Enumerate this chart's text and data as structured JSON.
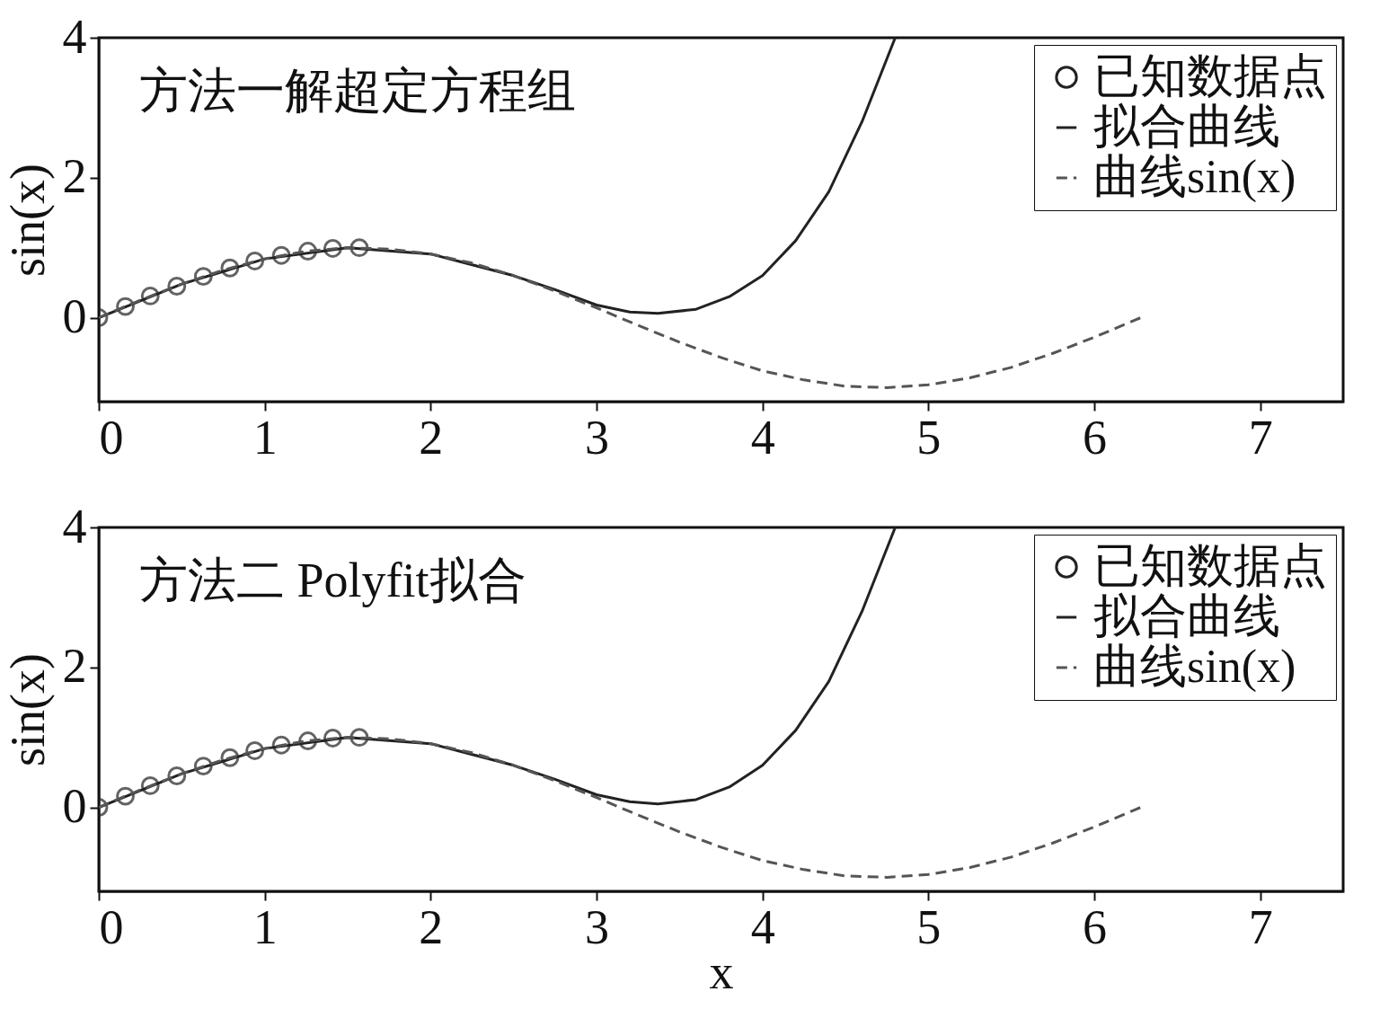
{
  "chart_data": [
    {
      "type": "line",
      "title": "方法一解超定方程组",
      "ylabel": "sin(x)",
      "xlim": [
        0,
        7.5
      ],
      "ylim": [
        -1.2,
        4
      ],
      "xticks": [
        0,
        1,
        2,
        3,
        4,
        5,
        6,
        7
      ],
      "yticks": [
        0,
        2,
        4
      ],
      "grid": false,
      "legend": "top right",
      "series": [
        {
          "name": "已知数据点",
          "type": "scatter",
          "marker": "circle",
          "color": "#222222",
          "x": [
            0,
            0.16,
            0.31,
            0.47,
            0.63,
            0.79,
            0.94,
            1.1,
            1.26,
            1.41,
            1.57
          ],
          "values": [
            0,
            0.16,
            0.31,
            0.45,
            0.59,
            0.71,
            0.81,
            0.89,
            0.95,
            0.99,
            1.0
          ]
        },
        {
          "name": "拟合曲线",
          "color": "#222222",
          "line_style": "solid",
          "x": [
            0,
            0.5,
            1,
            1.5,
            2,
            2.5,
            2.75,
            3,
            3.2,
            3.37,
            3.6,
            3.8,
            4,
            4.2,
            4.4,
            4.6,
            4.7,
            4.8
          ],
          "values": [
            0,
            0.48,
            0.84,
            1.0,
            0.91,
            0.6,
            0.4,
            0.18,
            0.08,
            0.06,
            0.12,
            0.3,
            0.6,
            1.1,
            1.8,
            2.8,
            3.4,
            4.0
          ]
        },
        {
          "name": "曲线sin(x)",
          "color": "#555555",
          "line_style": "dashed",
          "x": [
            0,
            0.25,
            0.5,
            0.75,
            1,
            1.25,
            1.5,
            1.75,
            2,
            2.25,
            2.5,
            2.75,
            3,
            3.25,
            3.5,
            3.75,
            4,
            4.25,
            4.5,
            4.75,
            5,
            5.25,
            5.5,
            5.75,
            6,
            6.25,
            6.28
          ],
          "values": [
            0,
            0.25,
            0.48,
            0.68,
            0.84,
            0.95,
            1.0,
            0.98,
            0.91,
            0.78,
            0.6,
            0.38,
            0.14,
            -0.11,
            -0.35,
            -0.57,
            -0.76,
            -0.89,
            -0.98,
            -1.0,
            -0.96,
            -0.86,
            -0.71,
            -0.51,
            -0.28,
            -0.03,
            0
          ]
        }
      ]
    },
    {
      "type": "line",
      "title": "方法二 Polyfit拟合",
      "xlabel": "x",
      "ylabel": "sin(x)",
      "xlim": [
        0,
        7.5
      ],
      "ylim": [
        -1.2,
        4
      ],
      "xticks": [
        0,
        1,
        2,
        3,
        4,
        5,
        6,
        7
      ],
      "yticks": [
        0,
        2,
        4
      ],
      "grid": false,
      "legend": "top right",
      "series": [
        {
          "name": "已知数据点",
          "type": "scatter",
          "marker": "circle",
          "color": "#222222",
          "x": [
            0,
            0.16,
            0.31,
            0.47,
            0.63,
            0.79,
            0.94,
            1.1,
            1.26,
            1.41,
            1.57
          ],
          "values": [
            0,
            0.16,
            0.31,
            0.45,
            0.59,
            0.71,
            0.81,
            0.89,
            0.95,
            0.99,
            1.0
          ]
        },
        {
          "name": "拟合曲线",
          "color": "#222222",
          "line_style": "solid",
          "x": [
            0,
            0.5,
            1,
            1.5,
            2,
            2.5,
            2.75,
            3,
            3.2,
            3.37,
            3.6,
            3.8,
            4,
            4.2,
            4.4,
            4.6,
            4.7,
            4.8
          ],
          "values": [
            0,
            0.48,
            0.84,
            1.0,
            0.91,
            0.6,
            0.4,
            0.18,
            0.08,
            0.05,
            0.11,
            0.29,
            0.6,
            1.1,
            1.8,
            2.8,
            3.4,
            4.0
          ]
        },
        {
          "name": "曲线sin(x)",
          "color": "#555555",
          "line_style": "dashed",
          "x": [
            0,
            0.25,
            0.5,
            0.75,
            1,
            1.25,
            1.5,
            1.75,
            2,
            2.25,
            2.5,
            2.75,
            3,
            3.25,
            3.5,
            3.75,
            4,
            4.25,
            4.5,
            4.75,
            5,
            5.25,
            5.5,
            5.75,
            6,
            6.25,
            6.28
          ],
          "values": [
            0,
            0.25,
            0.48,
            0.68,
            0.84,
            0.95,
            1.0,
            0.98,
            0.91,
            0.78,
            0.6,
            0.38,
            0.14,
            -0.11,
            -0.35,
            -0.57,
            -0.76,
            -0.89,
            -0.98,
            -1.0,
            -0.96,
            -0.86,
            -0.71,
            -0.51,
            -0.28,
            -0.03,
            0
          ]
        }
      ]
    }
  ]
}
